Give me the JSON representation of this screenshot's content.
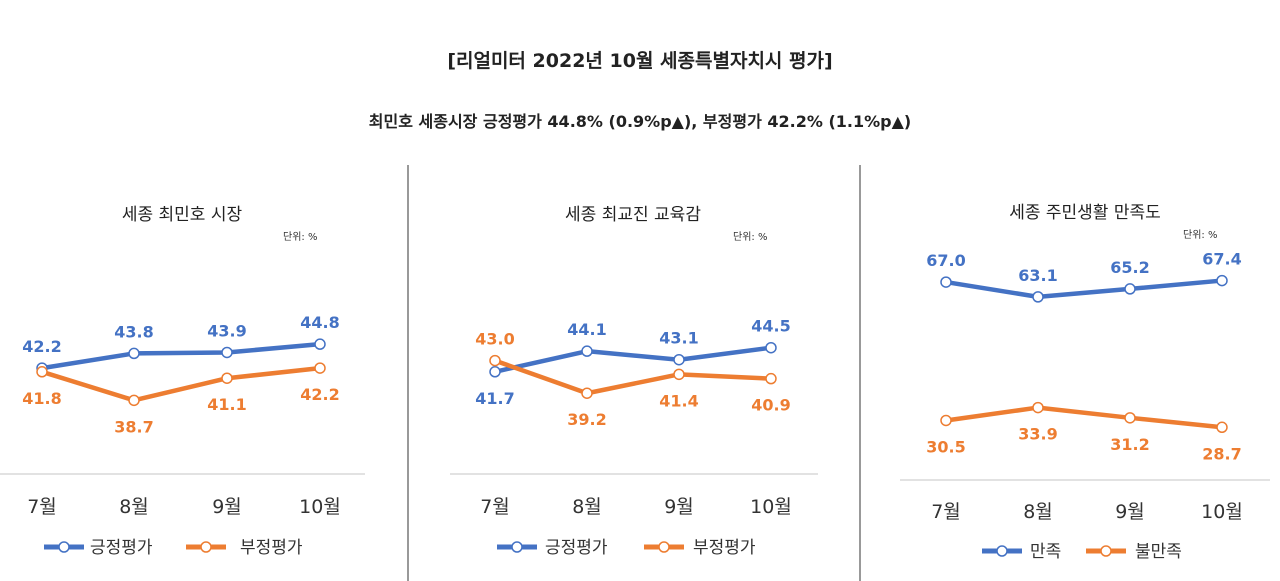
{
  "title": "[리얼미터 2022년 10월 세종특별자치시 평가]",
  "subtitle": "최민호 세종시장 긍정평가 44.8% (0.9%p▲), 부정평가 42.2% (1.1%p▲)",
  "chart_data": [
    {
      "type": "line",
      "title": "세종 최민호 시장",
      "unit": "단위: %",
      "categories": [
        "7월",
        "8월",
        "9월",
        "10월"
      ],
      "ylim": [
        30.7,
        57.2
      ],
      "series": [
        {
          "name": "긍정평가",
          "color": "#4472C4",
          "values": [
            42.2,
            43.8,
            43.9,
            44.8
          ]
        },
        {
          "name": "부정평가",
          "color": "#ED7D31",
          "values": [
            41.8,
            38.7,
            41.1,
            42.2
          ]
        }
      ]
    },
    {
      "type": "line",
      "title": "세종 최교진 교육감",
      "unit": "단위: %",
      "categories": [
        "7월",
        "8월",
        "9월",
        "10월"
      ],
      "ylim": [
        29.8,
        58.2
      ],
      "series": [
        {
          "name": "긍정평가",
          "color": "#4472C4",
          "values": [
            41.7,
            44.1,
            43.1,
            44.5
          ]
        },
        {
          "name": "부정평가",
          "color": "#ED7D31",
          "values": [
            43.0,
            39.2,
            41.4,
            40.9
          ]
        }
      ]
    },
    {
      "type": "line",
      "title": "세종 주민생활 만족도",
      "unit": "단위: %",
      "categories": [
        "7월",
        "8월",
        "9월",
        "10월"
      ],
      "ylim": [
        14.8,
        78.1
      ],
      "series": [
        {
          "name": "만족",
          "color": "#4472C4",
          "values": [
            67.0,
            63.1,
            65.2,
            67.4
          ]
        },
        {
          "name": "불만족",
          "color": "#ED7D31",
          "values": [
            30.5,
            33.9,
            31.2,
            28.7
          ]
        }
      ]
    }
  ]
}
